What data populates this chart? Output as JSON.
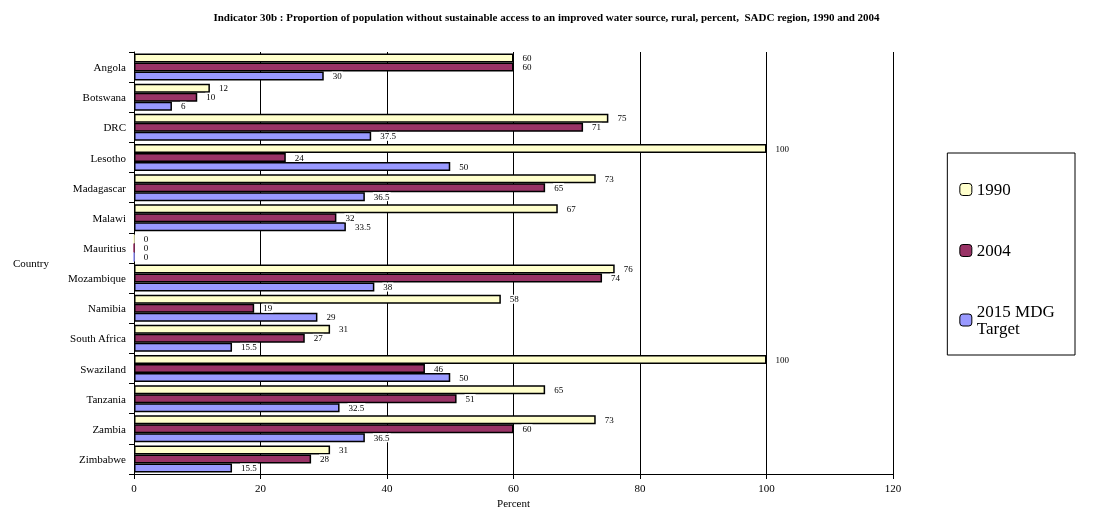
{
  "chart_data": {
    "type": "bar",
    "orientation": "horizontal",
    "title": "Indicator 30b : Proportion of population without sustainable access to an improved water source, rural, percent,  SADC region, 1990 and 2004",
    "xlabel": "Percent",
    "ylabel": "Country",
    "categories": [
      "Angola",
      "Botswana",
      "DRC",
      "Lesotho",
      "Madagascar",
      "Malawi",
      "Mauritius",
      "Mozambique",
      "Namibia",
      "South Africa",
      "Swaziland",
      "Tanzania",
      "Zambia",
      "Zimbabwe"
    ],
    "series": [
      {
        "name": "1990",
        "color": "#ffffcc",
        "values": [
          60,
          12,
          75,
          100,
          73,
          67,
          0,
          76,
          58,
          31,
          100,
          65,
          73,
          31
        ]
      },
      {
        "name": "2004",
        "color": "#993366",
        "values": [
          60,
          10,
          71,
          24,
          65,
          32,
          0,
          74,
          19,
          27,
          46,
          51,
          60,
          28
        ]
      },
      {
        "name": "2015 MDG Target",
        "color": "#9999ff",
        "values": [
          30,
          6,
          37.5,
          50,
          36.5,
          33.5,
          0,
          38,
          29,
          15.5,
          50,
          32.5,
          36.5,
          15.5
        ]
      }
    ],
    "xlim": [
      0,
      120
    ],
    "xticks": [
      0,
      20,
      40,
      60,
      80,
      100,
      120
    ],
    "grid": "x",
    "legend": "right",
    "data_labels": true
  }
}
